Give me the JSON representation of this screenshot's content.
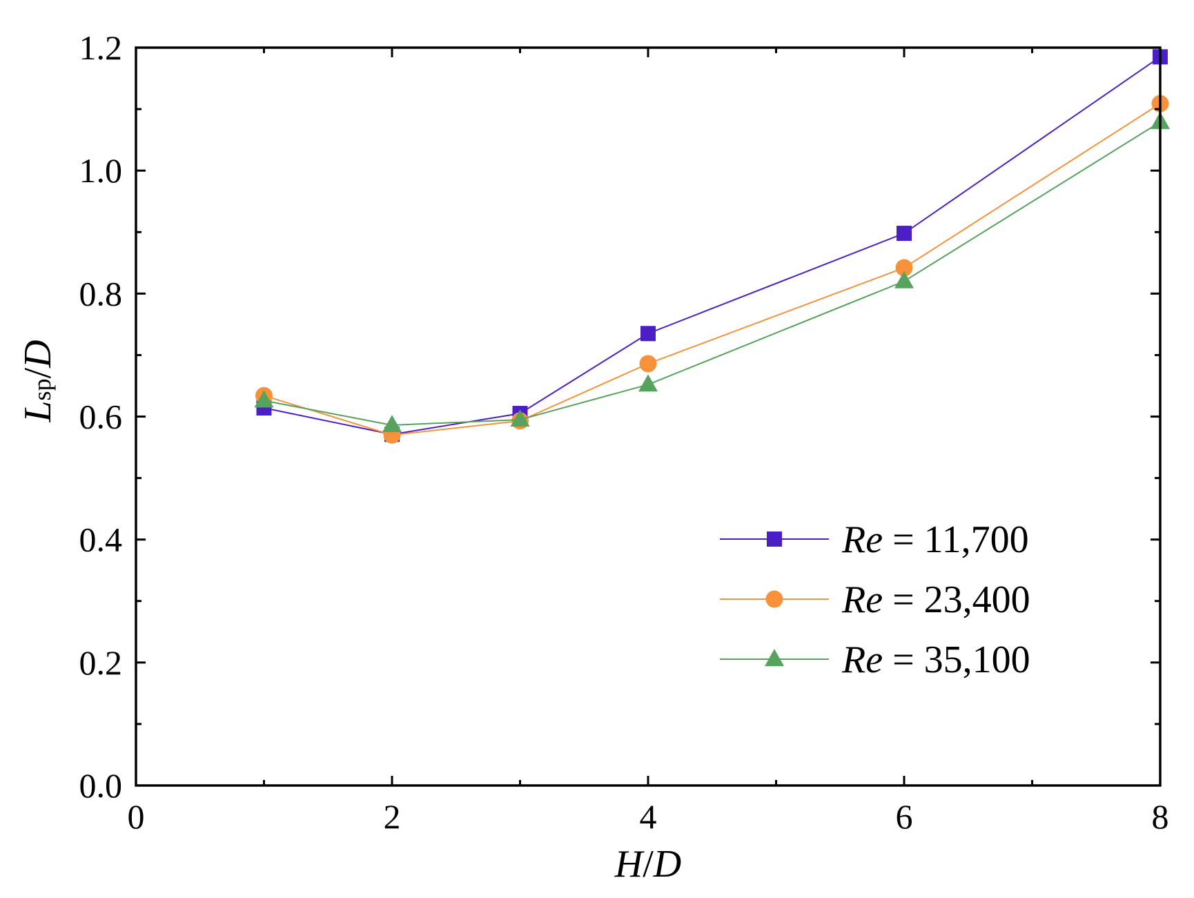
{
  "chart_data": {
    "type": "line",
    "title": "",
    "xlabel": "H/D",
    "ylabel": "Lsp/D",
    "xlabel_parts": {
      "a": "H",
      "sep": "/",
      "b": "D"
    },
    "ylabel_parts": {
      "main": "L",
      "sub": "sp",
      "sep": "/",
      "den": "D"
    },
    "xlim": [
      0,
      8
    ],
    "ylim": [
      0.0,
      1.2
    ],
    "x_major_ticks": [
      0,
      2,
      4,
      6,
      8
    ],
    "x_tick_labels": [
      "0",
      "2",
      "4",
      "6",
      "8"
    ],
    "x_minor_ticks": [
      1,
      3,
      5,
      7
    ],
    "y_major_ticks": [
      0.0,
      0.2,
      0.4,
      0.6,
      0.8,
      1.0,
      1.2
    ],
    "y_tick_labels": [
      "0.0",
      "0.2",
      "0.4",
      "0.6",
      "0.8",
      "1.0",
      "1.2"
    ],
    "y_minor_ticks": [
      0.1,
      0.3,
      0.5,
      0.7,
      0.9,
      1.1
    ],
    "grid": false,
    "legend_position": "lower-right",
    "x": [
      1,
      2,
      3,
      4,
      6,
      8
    ],
    "series": [
      {
        "name": "Re = 11,700",
        "legend_italic": "Re",
        "legend_rest": " = 11,700",
        "marker": "square",
        "color": "#4b1fc6",
        "values": [
          0.614,
          0.571,
          0.605,
          0.735,
          0.898,
          1.185
        ]
      },
      {
        "name": "Re = 23,400",
        "legend_italic": "Re",
        "legend_rest": " = 23,400",
        "marker": "circle",
        "color": "#f7923a",
        "values": [
          0.634,
          0.57,
          0.593,
          0.686,
          0.842,
          1.109
        ]
      },
      {
        "name": "Re = 35,100",
        "legend_italic": "Re",
        "legend_rest": " = 35,100",
        "marker": "triangle",
        "color": "#55a35c",
        "values": [
          0.626,
          0.586,
          0.595,
          0.652,
          0.82,
          1.079
        ]
      }
    ]
  }
}
